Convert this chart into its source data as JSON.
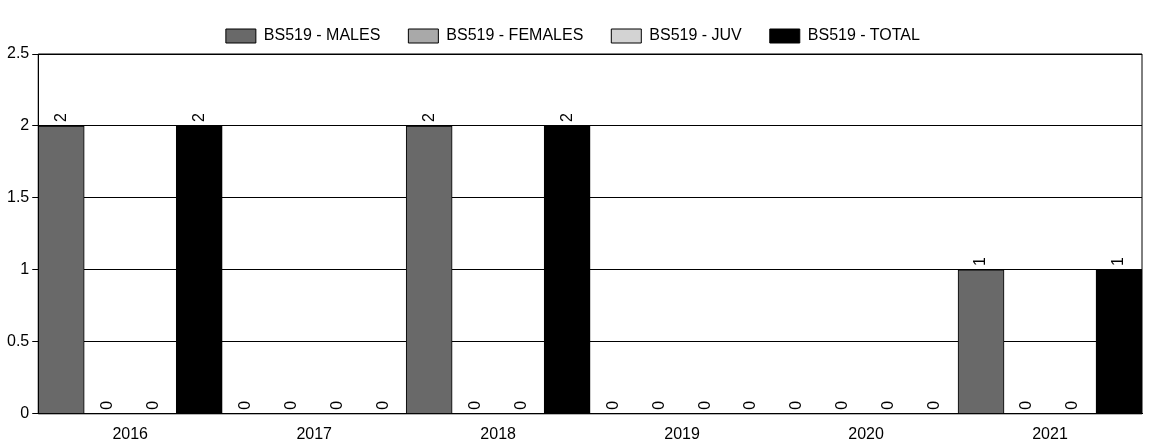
{
  "chart_data": {
    "type": "bar",
    "categories": [
      "2016",
      "2017",
      "2018",
      "2019",
      "2020",
      "2021"
    ],
    "series": [
      {
        "name": "BS519 - MALES",
        "color": "#696969",
        "values": [
          2,
          0,
          2,
          0,
          0,
          1
        ]
      },
      {
        "name": "BS519 - FEMALES",
        "color": "#a9a9a9",
        "values": [
          0,
          0,
          0,
          0,
          0,
          0
        ]
      },
      {
        "name": "BS519 - JUV",
        "color": "#d3d3d3",
        "values": [
          0,
          0,
          0,
          0,
          0,
          0
        ]
      },
      {
        "name": "BS519 - TOTAL",
        "color": "#000000",
        "values": [
          2,
          0,
          2,
          0,
          0,
          1
        ]
      }
    ],
    "ylim": [
      0,
      2.5
    ],
    "yticks": [
      0,
      0.5,
      1,
      1.5,
      2,
      2.5
    ],
    "grid": "y",
    "legend": "top",
    "data_labels": true
  }
}
